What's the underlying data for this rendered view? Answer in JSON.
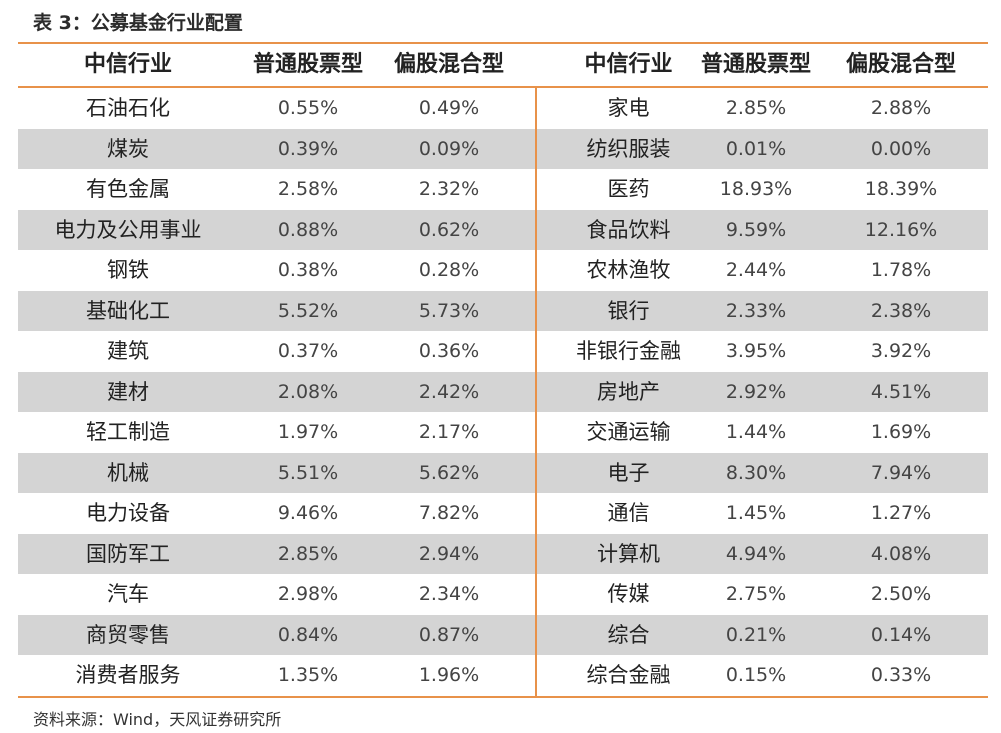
{
  "caption": "表 3：公募基金行业配置",
  "headers": [
    "中信行业",
    "普通股票型",
    "偏股混合型",
    "中信行业",
    "普通股票型",
    "偏股混合型"
  ],
  "rows": [
    [
      "石油石化",
      "0.55%",
      "0.49%",
      "家电",
      "2.85%",
      "2.88%"
    ],
    [
      "煤炭",
      "0.39%",
      "0.09%",
      "纺织服装",
      "0.01%",
      "0.00%"
    ],
    [
      "有色金属",
      "2.58%",
      "2.32%",
      "医药",
      "18.93%",
      "18.39%"
    ],
    [
      "电力及公用事业",
      "0.88%",
      "0.62%",
      "食品饮料",
      "9.59%",
      "12.16%"
    ],
    [
      "钢铁",
      "0.38%",
      "0.28%",
      "农林渔牧",
      "2.44%",
      "1.78%"
    ],
    [
      "基础化工",
      "5.52%",
      "5.73%",
      "银行",
      "2.33%",
      "2.38%"
    ],
    [
      "建筑",
      "0.37%",
      "0.36%",
      "非银行金融",
      "3.95%",
      "3.92%"
    ],
    [
      "建材",
      "2.08%",
      "2.42%",
      "房地产",
      "2.92%",
      "4.51%"
    ],
    [
      "轻工制造",
      "1.97%",
      "2.17%",
      "交通运输",
      "1.44%",
      "1.69%"
    ],
    [
      "机械",
      "5.51%",
      "5.62%",
      "电子",
      "8.30%",
      "7.94%"
    ],
    [
      "电力设备",
      "9.46%",
      "7.82%",
      "通信",
      "1.45%",
      "1.27%"
    ],
    [
      "国防军工",
      "2.85%",
      "2.94%",
      "计算机",
      "4.94%",
      "4.08%"
    ],
    [
      "汽车",
      "2.98%",
      "2.34%",
      "传媒",
      "2.75%",
      "2.50%"
    ],
    [
      "商贸零售",
      "0.84%",
      "0.87%",
      "综合",
      "0.21%",
      "0.14%"
    ],
    [
      "消费者服务",
      "1.35%",
      "1.96%",
      "综合金融",
      "0.15%",
      "0.33%"
    ]
  ],
  "source": "资料来源：Wind，天风证券研究所",
  "colors": {
    "accent": "#e8924a",
    "stripe": "#d4d4d4"
  }
}
